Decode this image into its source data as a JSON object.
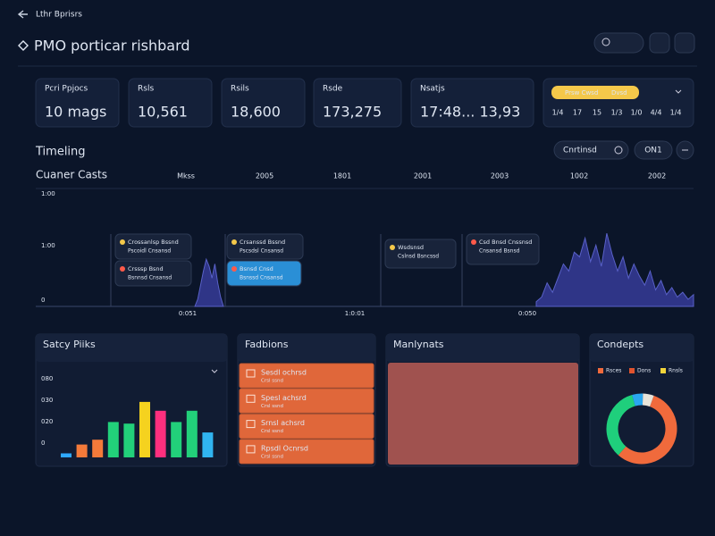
{
  "header": {
    "breadcrumb": "Lthr Bprisrs",
    "title": "PMO porticar rishbard"
  },
  "kpis": [
    {
      "label": "Pcri Ppjocs",
      "value": "10 mags"
    },
    {
      "label": "Rsls",
      "value": "10,561"
    },
    {
      "label": "Rsils",
      "value": "18,600"
    },
    {
      "label": "Rsde",
      "value": "173,275"
    },
    {
      "label": "Nsatjs",
      "value": "17:48...  13,93"
    }
  ],
  "calendar": {
    "tag": "Prsw Cwsd",
    "badge": "Dvsd",
    "days": [
      "1/4",
      "17",
      "15",
      "1/3",
      "1/0",
      "4/4",
      "1/4"
    ]
  },
  "timeline": {
    "title": "Timeling",
    "buttons": [
      "Cnrtinsd",
      "ON1"
    ],
    "subtitle": "Cuaner Casts",
    "columns": [
      "Mkss",
      "2005",
      "1801",
      "2001",
      "2003",
      "1002",
      "2002"
    ],
    "y_labels": [
      "1:00",
      "1:00",
      "0"
    ],
    "x_labels": [
      "0:051",
      "1:0:01",
      "0:050"
    ],
    "cards": [
      {
        "lines": [
          "Crossanlsp Bssnd",
          "Pscoidl Cnsansd"
        ]
      },
      {
        "lines": [
          "Crsssp Bsnd",
          "Bsnnsd Cnsansd"
        ]
      },
      {
        "lines": [
          "Crsanssd Bssnd",
          "Pscsdsl Cnsansd"
        ]
      },
      {
        "lines": [
          "Bsnsd Cnsd",
          "Bsnssd Cnsansd"
        ]
      },
      {
        "lines": [
          "Wsdsnsd",
          "Cslnsd Bsncssd"
        ]
      },
      {
        "lines": [
          "Csd Bnsd Cnssnsd",
          "Cnsansd Bsnsd"
        ]
      }
    ],
    "left_peak": [
      0,
      6,
      18,
      30,
      40,
      34,
      24,
      36,
      20,
      8,
      0
    ],
    "right_peaks": [
      4,
      8,
      20,
      12,
      24,
      36,
      30,
      46,
      42,
      58,
      38,
      52,
      34,
      62,
      44,
      30,
      42,
      24,
      36,
      26,
      18,
      30,
      14,
      22,
      10,
      16,
      8,
      12,
      6,
      10
    ]
  },
  "panels": {
    "sales": {
      "title": "Satcy Piiks",
      "y_labels": [
        "080",
        "030",
        "020",
        "0"
      ],
      "values": [
        5,
        16,
        22,
        44,
        42,
        69,
        58,
        44,
        58,
        31
      ],
      "colors": [
        "#2ea8ff",
        "#f47a3a",
        "#f47a3a",
        "#22d07a",
        "#22d07a",
        "#f5d21f",
        "#ff2f7e",
        "#22d07a",
        "#22d07a",
        "#30b4f0"
      ]
    },
    "fashions": {
      "title": "Fadbions",
      "items": [
        {
          "title": "Sesdl ochrsd",
          "sub": "Crsl ssnd"
        },
        {
          "title": "Spesl achsrd",
          "sub": "Crsl ssnd"
        },
        {
          "title": "Srnsl achsrd",
          "sub": "Crsl ssnd"
        },
        {
          "title": "Rpsdl Ocnrsd",
          "sub": "Crsl ssnd"
        }
      ]
    },
    "analysts": {
      "title": "Manlynats"
    },
    "concepts": {
      "title": "Condepts",
      "legend": [
        {
          "name": "Rsces",
          "color": "#f06a3c"
        },
        {
          "name": "Dons",
          "color": "#e0532e"
        },
        {
          "name": "Rnsls",
          "color": "#f2d43a"
        }
      ],
      "values": [
        56,
        34,
        5,
        5
      ],
      "colors": [
        "#f06a3c",
        "#1fcf7c",
        "#2aa7f0",
        "#e8e4da"
      ]
    }
  }
}
